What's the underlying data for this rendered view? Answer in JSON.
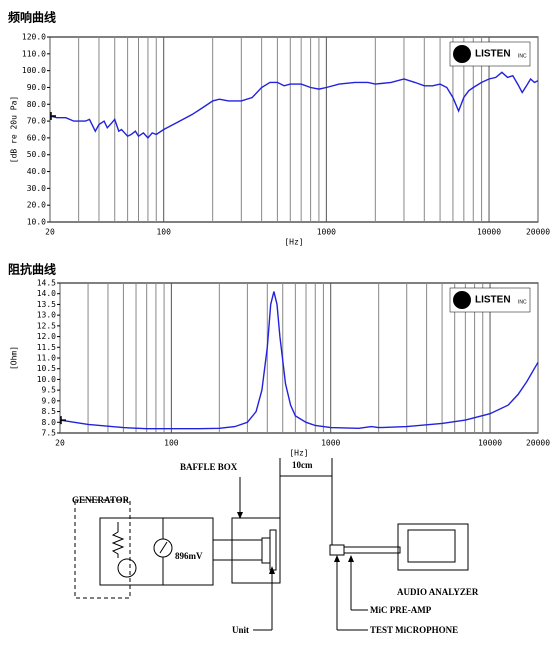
{
  "chart_data": [
    {
      "type": "line",
      "title": "频响曲线",
      "ylabel": "[dB re 20u Pa]",
      "xlabel": "[Hz]",
      "logo": "LISTEN",
      "logo_sub": "INC",
      "xscale": "log",
      "xlim": [
        20,
        20000
      ],
      "xticks": [
        20,
        100,
        1000,
        10000,
        20000
      ],
      "xgrid": [
        30,
        40,
        50,
        60,
        70,
        80,
        90,
        200,
        300,
        400,
        500,
        600,
        700,
        800,
        900,
        2000,
        3000,
        4000,
        5000,
        6000,
        7000,
        8000,
        9000
      ],
      "ylim": [
        10,
        120
      ],
      "yticks": [
        {
          "value": 10,
          "label": "10.0"
        },
        {
          "value": 20,
          "label": "20.0"
        },
        {
          "value": 30,
          "label": "30.0"
        },
        {
          "value": 40,
          "label": "40.0"
        },
        {
          "value": 50,
          "label": "50.0"
        },
        {
          "value": 60,
          "label": "60.0"
        },
        {
          "value": 70,
          "label": "70.0"
        },
        {
          "value": 80,
          "label": "80.0"
        },
        {
          "value": 90,
          "label": "90.0"
        },
        {
          "value": 100,
          "label": "100.0"
        },
        {
          "value": 110,
          "label": "110.0"
        },
        {
          "value": 120,
          "label": "120.0"
        }
      ],
      "color": "#2222dd",
      "x": [
        20,
        22,
        25,
        28,
        30,
        33,
        35,
        38,
        40,
        43,
        45,
        48,
        50,
        53,
        55,
        60,
        63,
        67,
        70,
        75,
        80,
        85,
        90,
        100,
        120,
        150,
        180,
        200,
        220,
        250,
        300,
        350,
        400,
        450,
        500,
        550,
        600,
        700,
        800,
        900,
        1000,
        1200,
        1500,
        1800,
        2000,
        2500,
        3000,
        3500,
        4000,
        4500,
        5000,
        5500,
        6000,
        6500,
        7000,
        7500,
        8000,
        9000,
        10000,
        11000,
        12000,
        13000,
        14000,
        15000,
        16000,
        17000,
        18000,
        19000,
        20000
      ],
      "values": [
        73,
        72,
        72,
        70,
        70,
        70,
        71,
        64,
        68,
        70,
        66,
        69,
        71,
        64,
        65,
        61,
        62,
        64,
        61,
        63,
        60,
        63,
        62,
        65,
        69,
        74,
        79,
        82,
        83,
        82,
        82,
        84,
        90,
        93,
        93,
        91,
        92,
        92,
        90,
        89,
        90,
        92,
        93,
        93,
        92,
        93,
        95,
        93,
        91,
        91,
        92,
        90,
        84,
        76,
        84,
        88,
        90,
        93,
        95,
        96,
        99,
        96,
        97,
        92,
        87,
        91,
        95,
        93,
        94
      ]
    },
    {
      "type": "line",
      "title": "阻抗曲线",
      "ylabel": "[Ohm]",
      "xlabel": "[Hz]",
      "logo": "LISTEN",
      "logo_sub": "INC",
      "xscale": "log",
      "xlim": [
        20,
        20000
      ],
      "xticks": [
        20,
        100,
        1000,
        10000,
        20000
      ],
      "xgrid": [
        30,
        40,
        50,
        60,
        70,
        80,
        90,
        200,
        300,
        400,
        500,
        600,
        700,
        800,
        900,
        2000,
        3000,
        4000,
        5000,
        6000,
        7000,
        8000,
        9000
      ],
      "ylim": [
        7.5,
        14.5
      ],
      "yticks": [
        7.5,
        {
          "value": 8,
          "label": "8.0"
        },
        8.5,
        {
          "value": 9,
          "label": "9.0"
        },
        9.5,
        {
          "value": 10,
          "label": "10.0"
        },
        10.5,
        {
          "value": 11,
          "label": "11.0"
        },
        11.5,
        {
          "value": 12,
          "label": "12.0"
        },
        12.5,
        {
          "value": 13,
          "label": "13.0"
        },
        13.5,
        {
          "value": 14,
          "label": "14.0"
        },
        14.5
      ],
      "color": "#2222dd",
      "x": [
        20,
        30,
        50,
        70,
        100,
        150,
        200,
        250,
        300,
        340,
        370,
        400,
        420,
        440,
        460,
        480,
        520,
        560,
        600,
        700,
        800,
        1000,
        1500,
        1800,
        2000,
        3000,
        5000,
        7000,
        10000,
        13000,
        15000,
        17000,
        20000
      ],
      "values": [
        8.1,
        7.9,
        7.75,
        7.7,
        7.7,
        7.7,
        7.72,
        7.8,
        8.0,
        8.5,
        9.5,
        11.5,
        13.5,
        14.1,
        13.5,
        12,
        9.8,
        8.8,
        8.3,
        8.0,
        7.85,
        7.75,
        7.72,
        7.8,
        7.75,
        7.8,
        7.95,
        8.1,
        8.4,
        8.8,
        9.3,
        9.9,
        10.8
      ]
    }
  ],
  "diagram": {
    "generator": "GENERATOR",
    "voltage": "896mV",
    "baffle_box": "BAFFLE BOX",
    "distance": "10cm",
    "analyzer": "AUDIO ANALYZER",
    "preamp": "MiC PRE-AMP",
    "microphone": "TEST MiCROPHONE",
    "unit": "Unit"
  }
}
